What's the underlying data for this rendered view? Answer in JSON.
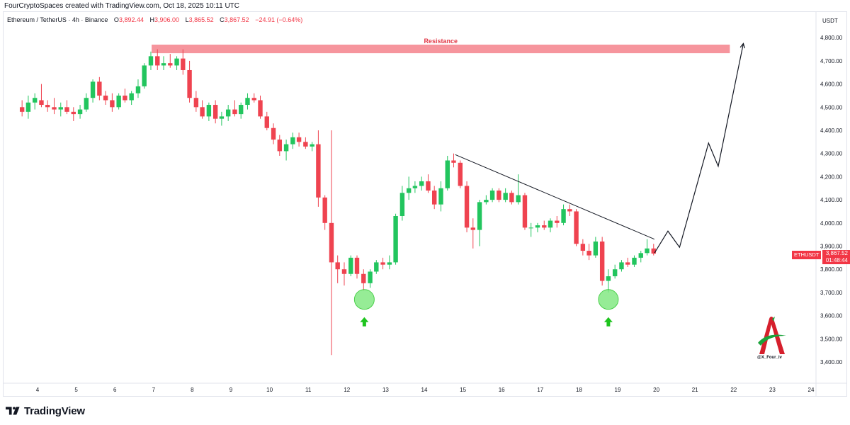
{
  "header": {
    "credit": "FourCryptoSpaces created with TradingView.com, Oct 18, 2025 10:11 UTC"
  },
  "info_line": {
    "symbol": "Ethereum / TetherUS · 4h · Binance",
    "o_label": "O",
    "o_value": "3,892.44",
    "h_label": "H",
    "h_value": "3,906.00",
    "l_label": "L",
    "l_value": "3,865.52",
    "c_label": "C",
    "c_value": "3,867.52",
    "change": "−24.91 (−0.64%)"
  },
  "price_tag": {
    "symbol": "ETHUSDT",
    "price": "3,867.52",
    "countdown": "01:48:44"
  },
  "watermark": "@X_Four_iv",
  "brand": "TradingView",
  "colors": {
    "up": "#22c55e",
    "down": "#ef4350",
    "resistance_fill": "#f4838c",
    "resistance_text": "#e23a48",
    "circle_fill": "#7de87d",
    "arrow": "#1ec41e"
  },
  "chart_data": {
    "type": "candlestick",
    "ylabel": "USDT",
    "ylim": [
      3350,
      4850
    ],
    "y_ticks": [
      "3,400.00",
      "3,500.00",
      "3,600.00",
      "3,700.00",
      "3,800.00",
      "3,900.00",
      "4,000.00",
      "4,100.00",
      "4,200.00",
      "4,300.00",
      "4,400.00",
      "4,500.00",
      "4,600.00",
      "4,700.00",
      "4,800.00"
    ],
    "x_ticks": [
      "4",
      "5",
      "6",
      "7",
      "8",
      "9",
      "10",
      "11",
      "12",
      "13",
      "14",
      "15",
      "16",
      "17",
      "18",
      "19",
      "20",
      "21",
      "22",
      "23",
      "24"
    ],
    "x_range_days": [
      3.5,
      24.4
    ],
    "candles": [
      {
        "t": 3.6,
        "o": 4500,
        "h": 4530,
        "l": 4460,
        "c": 4480
      },
      {
        "t": 3.76,
        "o": 4480,
        "h": 4550,
        "l": 4450,
        "c": 4520
      },
      {
        "t": 3.93,
        "o": 4520,
        "h": 4560,
        "l": 4490,
        "c": 4540
      },
      {
        "t": 4.1,
        "o": 4530,
        "h": 4600,
        "l": 4500,
        "c": 4510
      },
      {
        "t": 4.26,
        "o": 4510,
        "h": 4530,
        "l": 4480,
        "c": 4500
      },
      {
        "t": 4.43,
        "o": 4500,
        "h": 4540,
        "l": 4470,
        "c": 4490
      },
      {
        "t": 4.6,
        "o": 4490,
        "h": 4520,
        "l": 4460,
        "c": 4500
      },
      {
        "t": 4.76,
        "o": 4500,
        "h": 4530,
        "l": 4470,
        "c": 4480
      },
      {
        "t": 4.93,
        "o": 4480,
        "h": 4500,
        "l": 4440,
        "c": 4470
      },
      {
        "t": 5.1,
        "o": 4470,
        "h": 4510,
        "l": 4450,
        "c": 4490
      },
      {
        "t": 5.26,
        "o": 4490,
        "h": 4560,
        "l": 4480,
        "c": 4540
      },
      {
        "t": 5.43,
        "o": 4540,
        "h": 4620,
        "l": 4520,
        "c": 4610
      },
      {
        "t": 5.6,
        "o": 4610,
        "h": 4630,
        "l": 4530,
        "c": 4550
      },
      {
        "t": 5.76,
        "o": 4550,
        "h": 4570,
        "l": 4510,
        "c": 4530
      },
      {
        "t": 5.93,
        "o": 4530,
        "h": 4560,
        "l": 4480,
        "c": 4500
      },
      {
        "t": 6.1,
        "o": 4500,
        "h": 4560,
        "l": 4490,
        "c": 4550
      },
      {
        "t": 6.26,
        "o": 4550,
        "h": 4580,
        "l": 4520,
        "c": 4530
      },
      {
        "t": 6.43,
        "o": 4530,
        "h": 4570,
        "l": 4510,
        "c": 4560
      },
      {
        "t": 6.6,
        "o": 4560,
        "h": 4620,
        "l": 4540,
        "c": 4590
      },
      {
        "t": 6.76,
        "o": 4590,
        "h": 4690,
        "l": 4580,
        "c": 4680
      },
      {
        "t": 6.93,
        "o": 4680,
        "h": 4740,
        "l": 4660,
        "c": 4720
      },
      {
        "t": 7.1,
        "o": 4720,
        "h": 4750,
        "l": 4660,
        "c": 4680
      },
      {
        "t": 7.26,
        "o": 4680,
        "h": 4720,
        "l": 4660,
        "c": 4690
      },
      {
        "t": 7.43,
        "o": 4690,
        "h": 4730,
        "l": 4670,
        "c": 4680
      },
      {
        "t": 7.6,
        "o": 4680,
        "h": 4720,
        "l": 4660,
        "c": 4710
      },
      {
        "t": 7.76,
        "o": 4710,
        "h": 4750,
        "l": 4640,
        "c": 4660
      },
      {
        "t": 7.93,
        "o": 4660,
        "h": 4700,
        "l": 4520,
        "c": 4540
      },
      {
        "t": 8.1,
        "o": 4540,
        "h": 4570,
        "l": 4480,
        "c": 4500
      },
      {
        "t": 8.26,
        "o": 4500,
        "h": 4530,
        "l": 4450,
        "c": 4460
      },
      {
        "t": 8.43,
        "o": 4460,
        "h": 4520,
        "l": 4440,
        "c": 4510
      },
      {
        "t": 8.6,
        "o": 4510,
        "h": 4530,
        "l": 4430,
        "c": 4450
      },
      {
        "t": 8.76,
        "o": 4450,
        "h": 4480,
        "l": 4420,
        "c": 4460
      },
      {
        "t": 8.93,
        "o": 4460,
        "h": 4510,
        "l": 4440,
        "c": 4490
      },
      {
        "t": 9.1,
        "o": 4490,
        "h": 4530,
        "l": 4460,
        "c": 4470
      },
      {
        "t": 9.26,
        "o": 4470,
        "h": 4520,
        "l": 4450,
        "c": 4510
      },
      {
        "t": 9.43,
        "o": 4510,
        "h": 4560,
        "l": 4490,
        "c": 4540
      },
      {
        "t": 9.6,
        "o": 4540,
        "h": 4560,
        "l": 4520,
        "c": 4530
      },
      {
        "t": 9.76,
        "o": 4530,
        "h": 4550,
        "l": 4450,
        "c": 4460
      },
      {
        "t": 9.93,
        "o": 4460,
        "h": 4480,
        "l": 4400,
        "c": 4410
      },
      {
        "t": 10.1,
        "o": 4410,
        "h": 4430,
        "l": 4340,
        "c": 4360
      },
      {
        "t": 10.26,
        "o": 4360,
        "h": 4380,
        "l": 4290,
        "c": 4310
      },
      {
        "t": 10.43,
        "o": 4310,
        "h": 4360,
        "l": 4270,
        "c": 4340
      },
      {
        "t": 10.6,
        "o": 4340,
        "h": 4390,
        "l": 4320,
        "c": 4370
      },
      {
        "t": 10.76,
        "o": 4370,
        "h": 4390,
        "l": 4330,
        "c": 4350
      },
      {
        "t": 10.93,
        "o": 4350,
        "h": 4370,
        "l": 4320,
        "c": 4330
      },
      {
        "t": 11.1,
        "o": 4330,
        "h": 4350,
        "l": 4310,
        "c": 4340
      },
      {
        "t": 11.26,
        "o": 4340,
        "h": 4400,
        "l": 4070,
        "c": 4110
      },
      {
        "t": 11.43,
        "o": 4110,
        "h": 4120,
        "l": 3970,
        "c": 4000
      },
      {
        "t": 11.6,
        "o": 4000,
        "h": 4400,
        "l": 3430,
        "c": 3830
      },
      {
        "t": 11.76,
        "o": 3830,
        "h": 3860,
        "l": 3740,
        "c": 3800
      },
      {
        "t": 11.93,
        "o": 3800,
        "h": 3830,
        "l": 3730,
        "c": 3780
      },
      {
        "t": 12.1,
        "o": 3780,
        "h": 3860,
        "l": 3770,
        "c": 3850
      },
      {
        "t": 12.26,
        "o": 3850,
        "h": 3860,
        "l": 3760,
        "c": 3780
      },
      {
        "t": 12.43,
        "o": 3780,
        "h": 3800,
        "l": 3710,
        "c": 3740
      },
      {
        "t": 12.6,
        "o": 3740,
        "h": 3800,
        "l": 3720,
        "c": 3790
      },
      {
        "t": 12.76,
        "o": 3790,
        "h": 3840,
        "l": 3780,
        "c": 3830
      },
      {
        "t": 12.93,
        "o": 3830,
        "h": 3850,
        "l": 3800,
        "c": 3820
      },
      {
        "t": 13.1,
        "o": 3820,
        "h": 3860,
        "l": 3800,
        "c": 3830
      },
      {
        "t": 13.26,
        "o": 3830,
        "h": 4040,
        "l": 3820,
        "c": 4030
      },
      {
        "t": 13.43,
        "o": 4030,
        "h": 4160,
        "l": 4010,
        "c": 4130
      },
      {
        "t": 13.6,
        "o": 4130,
        "h": 4200,
        "l": 4100,
        "c": 4150
      },
      {
        "t": 13.76,
        "o": 4150,
        "h": 4180,
        "l": 4130,
        "c": 4160
      },
      {
        "t": 13.93,
        "o": 4160,
        "h": 4200,
        "l": 4140,
        "c": 4180
      },
      {
        "t": 14.1,
        "o": 4180,
        "h": 4210,
        "l": 4130,
        "c": 4140
      },
      {
        "t": 14.26,
        "o": 4140,
        "h": 4160,
        "l": 4060,
        "c": 4080
      },
      {
        "t": 14.43,
        "o": 4080,
        "h": 4180,
        "l": 4050,
        "c": 4150
      },
      {
        "t": 14.6,
        "o": 4150,
        "h": 4290,
        "l": 4140,
        "c": 4270
      },
      {
        "t": 14.76,
        "o": 4270,
        "h": 4300,
        "l": 4240,
        "c": 4260
      },
      {
        "t": 14.93,
        "o": 4260,
        "h": 4270,
        "l": 4150,
        "c": 4160
      },
      {
        "t": 15.1,
        "o": 4160,
        "h": 4180,
        "l": 3960,
        "c": 3980
      },
      {
        "t": 15.26,
        "o": 3980,
        "h": 4020,
        "l": 3890,
        "c": 3970
      },
      {
        "t": 15.43,
        "o": 3970,
        "h": 4100,
        "l": 3900,
        "c": 4090
      },
      {
        "t": 15.6,
        "o": 4090,
        "h": 4120,
        "l": 4080,
        "c": 4100
      },
      {
        "t": 15.76,
        "o": 4100,
        "h": 4150,
        "l": 4090,
        "c": 4140
      },
      {
        "t": 15.93,
        "o": 4140,
        "h": 4150,
        "l": 4090,
        "c": 4100
      },
      {
        "t": 16.1,
        "o": 4100,
        "h": 4150,
        "l": 4090,
        "c": 4130
      },
      {
        "t": 16.26,
        "o": 4130,
        "h": 4140,
        "l": 4080,
        "c": 4090
      },
      {
        "t": 16.43,
        "o": 4090,
        "h": 4210,
        "l": 4080,
        "c": 4120
      },
      {
        "t": 16.6,
        "o": 4120,
        "h": 4130,
        "l": 3970,
        "c": 3980
      },
      {
        "t": 16.76,
        "o": 3980,
        "h": 4000,
        "l": 3940,
        "c": 3980
      },
      {
        "t": 16.93,
        "o": 3980,
        "h": 4000,
        "l": 3960,
        "c": 3990
      },
      {
        "t": 17.1,
        "o": 3990,
        "h": 4010,
        "l": 3970,
        "c": 3980
      },
      {
        "t": 17.26,
        "o": 3980,
        "h": 4020,
        "l": 3960,
        "c": 4010
      },
      {
        "t": 17.43,
        "o": 4010,
        "h": 4030,
        "l": 3980,
        "c": 4000
      },
      {
        "t": 17.6,
        "o": 4000,
        "h": 4080,
        "l": 3990,
        "c": 4060
      },
      {
        "t": 17.76,
        "o": 4060,
        "h": 4080,
        "l": 4030,
        "c": 4050
      },
      {
        "t": 17.93,
        "o": 4050,
        "h": 4060,
        "l": 3900,
        "c": 3910
      },
      {
        "t": 18.1,
        "o": 3910,
        "h": 3930,
        "l": 3860,
        "c": 3880
      },
      {
        "t": 18.26,
        "o": 3880,
        "h": 3910,
        "l": 3840,
        "c": 3860
      },
      {
        "t": 18.43,
        "o": 3860,
        "h": 3940,
        "l": 3850,
        "c": 3920
      },
      {
        "t": 18.6,
        "o": 3920,
        "h": 3940,
        "l": 3730,
        "c": 3750
      },
      {
        "t": 18.76,
        "o": 3750,
        "h": 3800,
        "l": 3700,
        "c": 3770
      },
      {
        "t": 18.93,
        "o": 3770,
        "h": 3820,
        "l": 3760,
        "c": 3800
      },
      {
        "t": 19.1,
        "o": 3800,
        "h": 3840,
        "l": 3790,
        "c": 3830
      },
      {
        "t": 19.26,
        "o": 3830,
        "h": 3850,
        "l": 3810,
        "c": 3820
      },
      {
        "t": 19.43,
        "o": 3820,
        "h": 3860,
        "l": 3810,
        "c": 3850
      },
      {
        "t": 19.6,
        "o": 3850,
        "h": 3880,
        "l": 3830,
        "c": 3870
      },
      {
        "t": 19.76,
        "o": 3870,
        "h": 3930,
        "l": 3860,
        "c": 3890
      },
      {
        "t": 19.93,
        "o": 3890,
        "h": 3910,
        "l": 3860,
        "c": 3868
      }
    ],
    "annotations": {
      "resistance": {
        "label": "Resistance",
        "price_low": 4733,
        "price_high": 4770,
        "t_start": 6.95,
        "t_end": 21.9
      },
      "trendline": [
        {
          "t": 14.8,
          "price": 4295
        },
        {
          "t": 19.95,
          "price": 3930
        }
      ],
      "projection": [
        {
          "t": 19.95,
          "price": 3870
        },
        {
          "t": 20.3,
          "price": 3965
        },
        {
          "t": 20.6,
          "price": 3895
        },
        {
          "t": 21.35,
          "price": 4345
        },
        {
          "t": 21.6,
          "price": 4245
        },
        {
          "t": 22.25,
          "price": 4775
        }
      ],
      "circles": [
        {
          "t": 12.45,
          "price": 3670
        },
        {
          "t": 18.76,
          "price": 3670
        }
      ],
      "arrows": [
        {
          "t": 12.45,
          "price": 3572
        },
        {
          "t": 18.76,
          "price": 3572
        }
      ]
    }
  }
}
